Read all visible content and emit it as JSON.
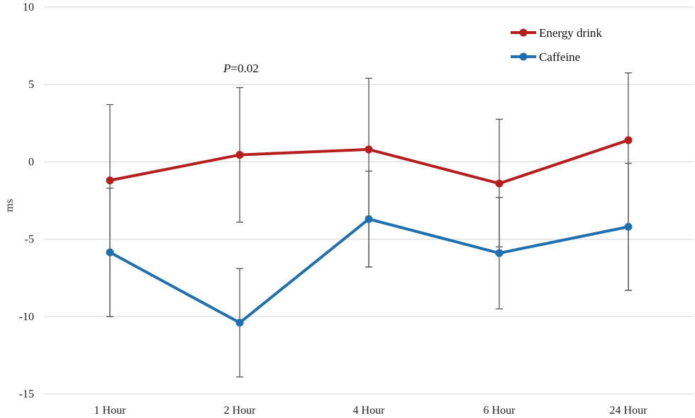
{
  "chart_data": {
    "type": "line",
    "title": "",
    "xlabel": "",
    "ylabel": "ms",
    "ylim": [
      -15,
      10
    ],
    "yticks": [
      -15,
      -10,
      -5,
      0,
      5,
      10
    ],
    "ytick_labels": [
      "-15",
      "-10",
      "-5",
      "0",
      "5",
      "10"
    ],
    "categories": [
      "1 Hour",
      "2 Hour",
      "4 Hour",
      "6 Hour",
      "24 Hour"
    ],
    "grid": "horizontal",
    "legend_position": "top-right",
    "series": [
      {
        "name": "Energy drink",
        "color": "#b61d1d",
        "values": [
          -1.2,
          0.45,
          0.8,
          -1.4,
          1.4
        ],
        "error_low": [
          -10.0,
          -3.9,
          -6.8,
          -5.5,
          -8.3
        ],
        "error_high": [
          3.7,
          4.8,
          5.4,
          2.75,
          5.75
        ]
      },
      {
        "name": "Caffeine",
        "color": "#1f70b0",
        "values": [
          -5.85,
          -10.4,
          -3.7,
          -5.9,
          -4.2
        ],
        "error_low": [
          -10.0,
          -13.9,
          -6.8,
          -9.5,
          -8.3
        ],
        "error_high": [
          -1.7,
          -6.9,
          -0.6,
          -2.3,
          -0.1
        ]
      }
    ],
    "annotations": [
      {
        "italic": "P",
        "text": "=0.02"
      }
    ]
  }
}
